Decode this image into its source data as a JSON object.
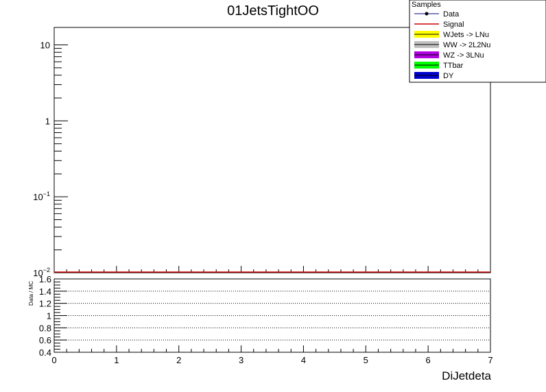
{
  "chart_data": [
    {
      "type": "line",
      "title": "01JetsTightOO",
      "yscale": "log",
      "xlim": [
        0,
        7
      ],
      "ylim": [
        0.01,
        17
      ],
      "y_ticks": [
        {
          "value": 10,
          "label": "10"
        },
        {
          "value": 1,
          "label": "1"
        },
        {
          "value": 0.1,
          "label": "10",
          "exp": "−1"
        },
        {
          "value": 0.01,
          "label": "10",
          "exp": "−2"
        }
      ],
      "legend": {
        "placement": "top-right",
        "header": "Samples",
        "entries": [
          {
            "name": "Data",
            "style": "marker",
            "color": "#000080"
          },
          {
            "name": "Signal",
            "style": "line",
            "color": "#cc0000"
          },
          {
            "name": "WJets -> LNu",
            "style": "fill",
            "color": "#ffff00"
          },
          {
            "name": "WW -> 2L2Nu",
            "style": "fill",
            "color": "#c0c0c0"
          },
          {
            "name": "WZ -> 3LNu",
            "style": "fill",
            "color": "#b000e0"
          },
          {
            "name": "TTbar",
            "style": "fill",
            "color": "#00ff00"
          },
          {
            "name": "DY",
            "style": "fill",
            "color": "#0000cc"
          }
        ]
      },
      "series": [
        {
          "name": "Signal",
          "color": "#cc0000",
          "x": [
            0,
            7
          ],
          "values": [
            0.01,
            0.01
          ]
        }
      ]
    },
    {
      "type": "scatter",
      "ylabel": "Data / MC",
      "xlabel": "DiJetdeta",
      "xlim": [
        0,
        7
      ],
      "ylim": [
        0.4,
        1.6
      ],
      "x_ticks": [
        "0",
        "1",
        "2",
        "3",
        "4",
        "5",
        "6",
        "7"
      ],
      "y_ticks": [
        "0.4",
        "0.6",
        "0.8",
        "1",
        "1.2",
        "1.4",
        "1.6"
      ],
      "grid": "horizontal-dotted",
      "series": []
    }
  ]
}
